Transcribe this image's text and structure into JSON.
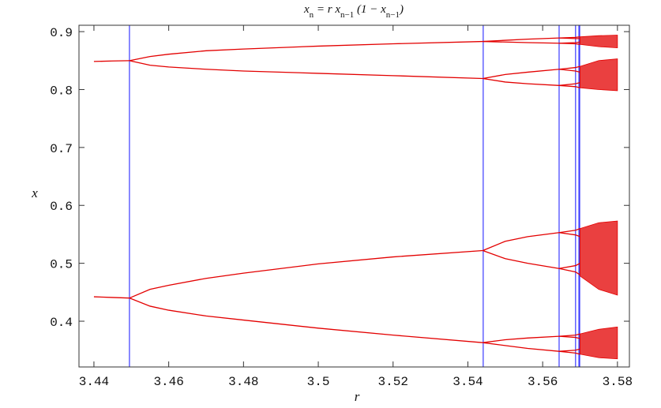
{
  "chart_data": {
    "type": "line",
    "title": [
      "x",
      "n",
      " = r x",
      "n−1",
      " (1 − x",
      "n−1",
      ")"
    ],
    "title_subscripts": [
      false,
      true,
      false,
      true,
      false,
      true,
      false
    ],
    "x_label": "r",
    "y_label": "x",
    "xlim": [
      3.436,
      3.5832
    ],
    "ylim": [
      0.321,
      0.911
    ],
    "xticks": [
      3.44,
      3.46,
      3.48,
      3.5,
      3.52,
      3.54,
      3.56,
      3.58
    ],
    "yticks": [
      0.4,
      0.5,
      0.6,
      0.7,
      0.8,
      0.9
    ],
    "color": "#e30000",
    "series": [
      {
        "x": [
          3.44,
          3.445,
          3.4495
        ],
        "values": [
          0.8485,
          0.8493,
          0.8499
        ]
      },
      {
        "x": [
          3.44,
          3.445,
          3.4495
        ],
        "values": [
          0.4422,
          0.441,
          0.44
        ]
      },
      {
        "x": [
          3.4495,
          3.455,
          3.46,
          3.47,
          3.48,
          3.5,
          3.52,
          3.544
        ],
        "values": [
          0.8499,
          0.857,
          0.861,
          0.867,
          0.87,
          0.875,
          0.879,
          0.883
        ]
      },
      {
        "x": [
          3.4495,
          3.455,
          3.46,
          3.47,
          3.48,
          3.5,
          3.52,
          3.544
        ],
        "values": [
          0.8499,
          0.842,
          0.839,
          0.835,
          0.832,
          0.828,
          0.824,
          0.819
        ]
      },
      {
        "x": [
          3.4495,
          3.455,
          3.46,
          3.47,
          3.48,
          3.5,
          3.52,
          3.544
        ],
        "values": [
          0.44,
          0.455,
          0.462,
          0.474,
          0.483,
          0.499,
          0.511,
          0.522
        ]
      },
      {
        "x": [
          3.4495,
          3.455,
          3.46,
          3.47,
          3.48,
          3.5,
          3.52,
          3.544
        ],
        "values": [
          0.44,
          0.426,
          0.419,
          0.409,
          0.402,
          0.388,
          0.376,
          0.363
        ]
      },
      {
        "x": [
          3.544,
          3.55,
          3.556,
          3.5644
        ],
        "values": [
          0.883,
          0.885,
          0.887,
          0.889
        ]
      },
      {
        "x": [
          3.544,
          3.55,
          3.556,
          3.5644
        ],
        "values": [
          0.883,
          0.882,
          0.881,
          0.88
        ]
      },
      {
        "x": [
          3.544,
          3.55,
          3.556,
          3.5644
        ],
        "values": [
          0.819,
          0.826,
          0.83,
          0.835
        ]
      },
      {
        "x": [
          3.544,
          3.55,
          3.556,
          3.5644
        ],
        "values": [
          0.819,
          0.813,
          0.81,
          0.807
        ]
      },
      {
        "x": [
          3.544,
          3.55,
          3.556,
          3.5644
        ],
        "values": [
          0.522,
          0.538,
          0.546,
          0.553
        ]
      },
      {
        "x": [
          3.544,
          3.55,
          3.556,
          3.5644
        ],
        "values": [
          0.522,
          0.508,
          0.5,
          0.491
        ]
      },
      {
        "x": [
          3.544,
          3.55,
          3.556,
          3.5644
        ],
        "values": [
          0.363,
          0.368,
          0.371,
          0.374
        ]
      },
      {
        "x": [
          3.544,
          3.55,
          3.556,
          3.5644
        ],
        "values": [
          0.363,
          0.358,
          0.353,
          0.348
        ]
      },
      {
        "x": [
          3.5644,
          3.5688,
          3.57
        ],
        "values": [
          0.889,
          0.89,
          0.891
        ]
      },
      {
        "x": [
          3.5644,
          3.5688,
          3.57
        ],
        "values": [
          0.889,
          0.888,
          0.888
        ]
      },
      {
        "x": [
          3.5644,
          3.5688,
          3.57
        ],
        "values": [
          0.88,
          0.881,
          0.882
        ]
      },
      {
        "x": [
          3.5644,
          3.5688,
          3.57
        ],
        "values": [
          0.88,
          0.879,
          0.878
        ]
      },
      {
        "x": [
          3.5644,
          3.5688,
          3.57
        ],
        "values": [
          0.835,
          0.838,
          0.84
        ]
      },
      {
        "x": [
          3.5644,
          3.5688,
          3.57
        ],
        "values": [
          0.835,
          0.832,
          0.83
        ]
      },
      {
        "x": [
          3.5644,
          3.5688,
          3.57
        ],
        "values": [
          0.807,
          0.81,
          0.812
        ]
      },
      {
        "x": [
          3.5644,
          3.5688,
          3.57
        ],
        "values": [
          0.807,
          0.805,
          0.803
        ]
      },
      {
        "x": [
          3.5644,
          3.5688,
          3.57
        ],
        "values": [
          0.553,
          0.557,
          0.56
        ]
      },
      {
        "x": [
          3.5644,
          3.5688,
          3.57
        ],
        "values": [
          0.553,
          0.549,
          0.546
        ]
      },
      {
        "x": [
          3.5644,
          3.5688,
          3.57
        ],
        "values": [
          0.491,
          0.496,
          0.5
        ]
      },
      {
        "x": [
          3.5644,
          3.5688,
          3.57
        ],
        "values": [
          0.491,
          0.485,
          0.48
        ]
      },
      {
        "x": [
          3.5644,
          3.5688,
          3.57
        ],
        "values": [
          0.374,
          0.376,
          0.378
        ]
      },
      {
        "x": [
          3.5644,
          3.5688,
          3.57
        ],
        "values": [
          0.374,
          0.372,
          0.37
        ]
      },
      {
        "x": [
          3.5644,
          3.5688,
          3.57
        ],
        "values": [
          0.348,
          0.35,
          0.352
        ]
      },
      {
        "x": [
          3.5644,
          3.5688,
          3.57
        ],
        "values": [
          0.348,
          0.345,
          0.343
        ]
      }
    ],
    "bands": [
      {
        "x": [
          3.57,
          3.575,
          3.58
        ],
        "low": [
          0.878,
          0.874,
          0.872
        ],
        "high": [
          0.891,
          0.893,
          0.894
        ]
      },
      {
        "x": [
          3.57,
          3.575,
          3.58
        ],
        "low": [
          0.803,
          0.8,
          0.798
        ],
        "high": [
          0.84,
          0.85,
          0.853
        ]
      },
      {
        "x": [
          3.57,
          3.575,
          3.58
        ],
        "low": [
          0.478,
          0.455,
          0.445
        ],
        "high": [
          0.56,
          0.57,
          0.573
        ]
      },
      {
        "x": [
          3.57,
          3.575,
          3.58
        ],
        "low": [
          0.343,
          0.337,
          0.335
        ],
        "high": [
          0.378,
          0.386,
          0.39
        ]
      }
    ],
    "bifurcations": {
      "color": "#3b3bff",
      "x": [
        3.4495,
        3.5441,
        3.5644,
        3.5688,
        3.5697,
        3.5699
      ]
    }
  }
}
